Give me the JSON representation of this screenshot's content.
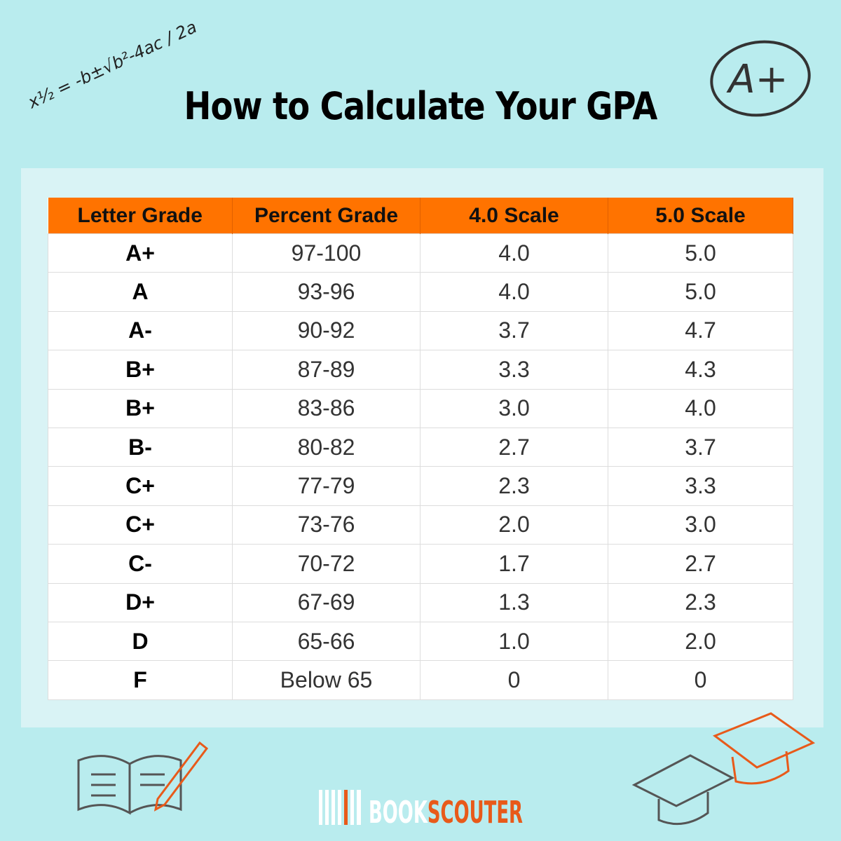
{
  "header": {
    "title": "How to Calculate Your GPA",
    "formula": "x½ = -b±√b²-4ac / 2a",
    "badge": "A+"
  },
  "table": {
    "columns": [
      "Letter Grade",
      "Percent Grade",
      "4.0 Scale",
      "5.0 Scale"
    ],
    "rows": [
      [
        "A+",
        "97-100",
        "4.0",
        "5.0"
      ],
      [
        "A",
        "93-96",
        "4.0",
        "5.0"
      ],
      [
        "A-",
        "90-92",
        "3.7",
        "4.7"
      ],
      [
        "B+",
        "87-89",
        "3.3",
        "4.3"
      ],
      [
        "B+",
        "83-86",
        "3.0",
        "4.0"
      ],
      [
        "B-",
        "80-82",
        "2.7",
        "3.7"
      ],
      [
        "C+",
        "77-79",
        "2.3",
        "3.3"
      ],
      [
        "C+",
        "73-76",
        "2.0",
        "3.0"
      ],
      [
        "C-",
        "70-72",
        "1.7",
        "2.7"
      ],
      [
        "D+",
        "67-69",
        "1.3",
        "2.3"
      ],
      [
        "D",
        "65-66",
        "1.0",
        "2.0"
      ],
      [
        "F",
        "Below 65",
        "0",
        "0"
      ]
    ]
  },
  "footer": {
    "logo_first": "BOOK",
    "logo_second": "SCOUTER"
  }
}
